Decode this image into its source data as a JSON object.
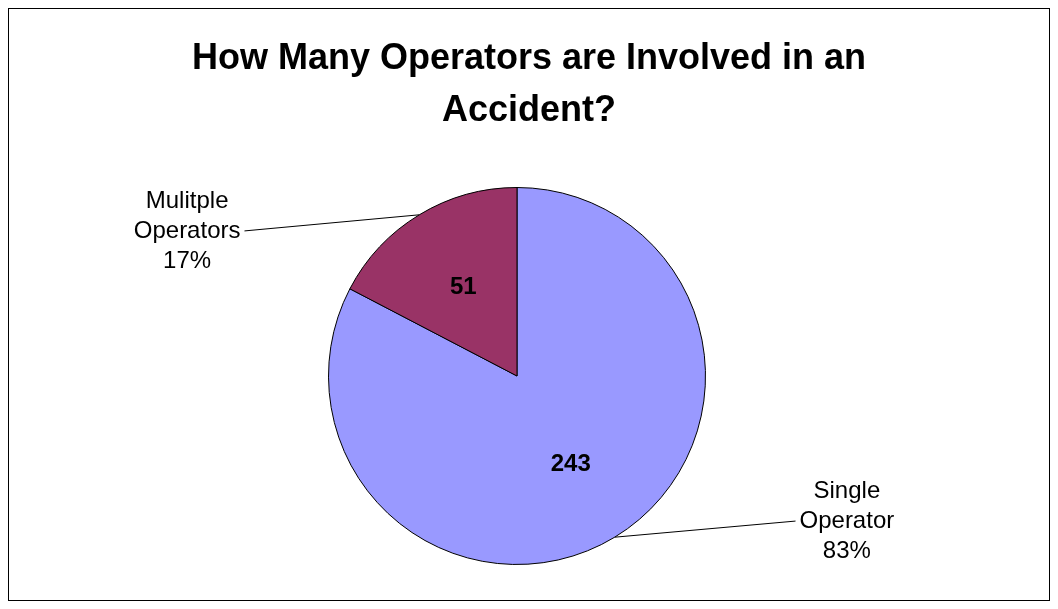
{
  "chart_data": {
    "type": "pie",
    "title": "How Many Operators are Involved in an Accident?",
    "categories": [
      "Single Operator",
      "Mulitple Operators"
    ],
    "values": [
      243,
      51
    ],
    "colors": [
      "#9999ff",
      "#993366"
    ],
    "value_labels": [
      "243",
      "51"
    ],
    "annotations": [
      "83%",
      "17%"
    ],
    "legend": false
  }
}
